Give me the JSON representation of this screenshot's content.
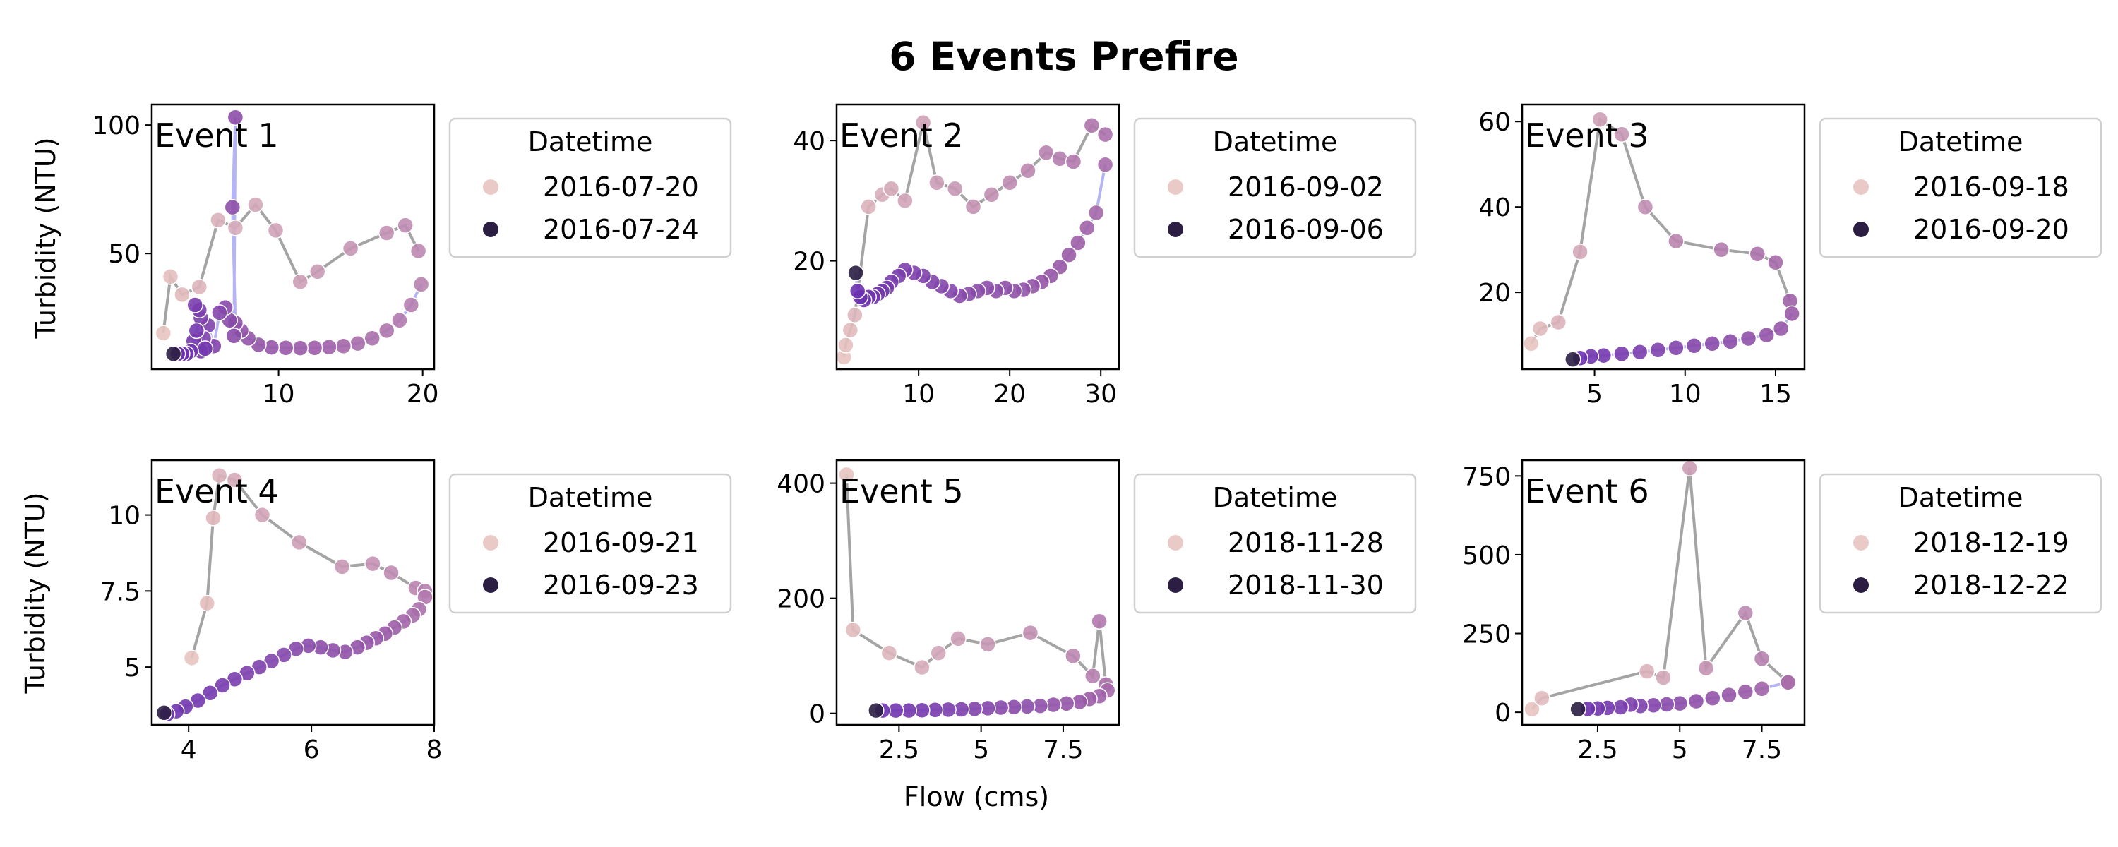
{
  "figure": {
    "title": "6 Events Prefire",
    "xlabel": "Flow (cms)",
    "ylabel": "Turbidity (NTU)"
  },
  "colors": {
    "start": "#e8c4c0",
    "mid": "#9b5ba6",
    "end": "#6a2fb0",
    "final": "#2b1e42",
    "rising": "#9a9a9a",
    "falling": "#8c8cf2"
  },
  "chart_data": [
    {
      "type": "scatter",
      "label": "Event 1",
      "legend": {
        "title": "Datetime",
        "start": "2016-07-20",
        "end": "2016-07-24"
      },
      "xlim": [
        1.2,
        20.8
      ],
      "ylim": [
        5,
        108
      ],
      "xticks": [
        10,
        20
      ],
      "yticks": [
        50,
        100
      ],
      "rising": [
        [
          2,
          19
        ],
        [
          2.5,
          41
        ],
        [
          3.3,
          34
        ],
        [
          4.5,
          37
        ],
        [
          5.8,
          63
        ],
        [
          7,
          60
        ],
        [
          8.4,
          69
        ],
        [
          9.8,
          59
        ],
        [
          11.5,
          39
        ],
        [
          12.7,
          43
        ],
        [
          15,
          52
        ],
        [
          17.5,
          58
        ],
        [
          18.8,
          61
        ],
        [
          19.7,
          51
        ]
      ],
      "falling": [
        [
          19.9,
          38
        ],
        [
          19.2,
          30
        ],
        [
          18.4,
          24
        ],
        [
          17.5,
          20
        ],
        [
          16.5,
          17
        ],
        [
          15.5,
          15
        ],
        [
          14.5,
          14
        ],
        [
          13.5,
          13.6
        ],
        [
          12.5,
          13.3
        ],
        [
          11.5,
          13.2
        ],
        [
          10.5,
          13.3
        ],
        [
          9.5,
          13.5
        ],
        [
          8.6,
          14.5
        ],
        [
          7.9,
          17
        ],
        [
          7.4,
          20
        ],
        [
          7,
          23
        ],
        [
          6.8,
          68
        ],
        [
          7,
          103
        ],
        [
          6.9,
          18
        ],
        [
          6.6,
          24
        ],
        [
          6.3,
          29
        ],
        [
          5.9,
          27
        ],
        [
          5.5,
          14
        ],
        [
          5.1,
          22
        ],
        [
          4.8,
          17
        ],
        [
          4.6,
          25
        ],
        [
          4.5,
          28
        ],
        [
          4.2,
          30
        ],
        [
          4.6,
          12
        ],
        [
          4.1,
          16
        ],
        [
          4.3,
          20
        ],
        [
          4.9,
          13
        ],
        [
          3.9,
          12
        ],
        [
          3.6,
          11
        ],
        [
          3.3,
          11
        ],
        [
          3.0,
          11
        ],
        [
          2.7,
          11
        ]
      ]
    },
    {
      "type": "scatter",
      "label": "Event 2",
      "legend": {
        "title": "Datetime",
        "start": "2016-09-02",
        "end": "2016-09-06"
      },
      "xlim": [
        1,
        32
      ],
      "ylim": [
        2,
        46
      ],
      "xticks": [
        10,
        20,
        30
      ],
      "yticks": [
        20,
        40
      ],
      "rising": [
        [
          1.8,
          4
        ],
        [
          2,
          6
        ],
        [
          2.5,
          8.5
        ],
        [
          3,
          11
        ],
        [
          4.5,
          29
        ],
        [
          6,
          31
        ],
        [
          7,
          32
        ],
        [
          8.5,
          30
        ],
        [
          10.5,
          43
        ],
        [
          12,
          33
        ],
        [
          14,
          32
        ],
        [
          16,
          29
        ],
        [
          18,
          31
        ],
        [
          20,
          33
        ],
        [
          22,
          35
        ],
        [
          24,
          38
        ],
        [
          25.5,
          37
        ],
        [
          27,
          36.5
        ],
        [
          29,
          42.5
        ],
        [
          30.5,
          41
        ]
      ],
      "falling": [
        [
          30.5,
          36
        ],
        [
          29.5,
          28
        ],
        [
          28.5,
          25.5
        ],
        [
          27.5,
          23
        ],
        [
          26.5,
          21
        ],
        [
          25.5,
          19
        ],
        [
          24.5,
          17.5
        ],
        [
          23.5,
          16.5
        ],
        [
          22.5,
          15.8
        ],
        [
          21.5,
          15.2
        ],
        [
          20.5,
          15
        ],
        [
          19.5,
          15.5
        ],
        [
          18.5,
          15
        ],
        [
          17.5,
          15.5
        ],
        [
          16.5,
          15
        ],
        [
          15.5,
          14.5
        ],
        [
          14.5,
          14.2
        ],
        [
          13.5,
          15
        ],
        [
          12.5,
          15.8
        ],
        [
          11.5,
          16.5
        ],
        [
          10.5,
          17.5
        ],
        [
          9.5,
          18
        ],
        [
          8.5,
          18.5
        ],
        [
          7.8,
          17.5
        ],
        [
          7,
          16.5
        ],
        [
          6.5,
          15.5
        ],
        [
          6,
          15
        ],
        [
          5.5,
          14.5
        ],
        [
          5,
          14
        ],
        [
          4.5,
          14
        ],
        [
          4,
          13.5
        ],
        [
          3.6,
          14
        ],
        [
          3.3,
          15
        ],
        [
          3.1,
          18
        ]
      ]
    },
    {
      "type": "scatter",
      "label": "Event 3",
      "legend": {
        "title": "Datetime",
        "start": "2016-09-18",
        "end": "2016-09-20"
      },
      "xlim": [
        1,
        16.6
      ],
      "ylim": [
        2,
        64
      ],
      "xticks": [
        5,
        10,
        15
      ],
      "yticks": [
        20,
        40,
        60
      ],
      "rising": [
        [
          1.5,
          8
        ],
        [
          2,
          11.5
        ],
        [
          3,
          13
        ],
        [
          4.2,
          29.5
        ],
        [
          5.3,
          60.5
        ],
        [
          6.5,
          57
        ],
        [
          7.8,
          40
        ],
        [
          9.5,
          32
        ],
        [
          12,
          30
        ],
        [
          14,
          29
        ],
        [
          15,
          27
        ],
        [
          15.8,
          18
        ]
      ],
      "falling": [
        [
          15.9,
          15
        ],
        [
          15.3,
          11.5
        ],
        [
          14.5,
          10
        ],
        [
          13.5,
          9.2
        ],
        [
          12.5,
          8.5
        ],
        [
          11.5,
          8
        ],
        [
          10.5,
          7.5
        ],
        [
          9.5,
          7
        ],
        [
          8.5,
          6.5
        ],
        [
          7.5,
          6
        ],
        [
          6.5,
          5.6
        ],
        [
          5.5,
          5.2
        ],
        [
          4.8,
          5
        ],
        [
          4.2,
          4.6
        ],
        [
          3.8,
          4.3
        ]
      ]
    },
    {
      "type": "scatter",
      "label": "Event 4",
      "legend": {
        "title": "Datetime",
        "start": "2016-09-21",
        "end": "2016-09-23"
      },
      "xlim": [
        3.4,
        8.0
      ],
      "ylim": [
        3.1,
        11.8
      ],
      "xticks": [
        4,
        6,
        8
      ],
      "yticks": [
        5.0,
        7.5,
        10.0
      ],
      "rising": [
        [
          4.05,
          5.3
        ],
        [
          4.3,
          7.1
        ],
        [
          4.4,
          9.9
        ],
        [
          4.5,
          11.3
        ],
        [
          4.75,
          11.15
        ],
        [
          5.2,
          10
        ],
        [
          5.8,
          9.1
        ],
        [
          6.5,
          8.3
        ],
        [
          7,
          8.4
        ],
        [
          7.3,
          8.1
        ],
        [
          7.7,
          7.6
        ],
        [
          7.85,
          7.5
        ]
      ],
      "falling": [
        [
          7.85,
          7.3
        ],
        [
          7.75,
          6.9
        ],
        [
          7.65,
          6.7
        ],
        [
          7.5,
          6.5
        ],
        [
          7.35,
          6.3
        ],
        [
          7.2,
          6.1
        ],
        [
          7.05,
          5.95
        ],
        [
          6.9,
          5.8
        ],
        [
          6.75,
          5.65
        ],
        [
          6.55,
          5.5
        ],
        [
          6.35,
          5.55
        ],
        [
          6.15,
          5.65
        ],
        [
          5.95,
          5.7
        ],
        [
          5.75,
          5.6
        ],
        [
          5.55,
          5.4
        ],
        [
          5.35,
          5.2
        ],
        [
          5.15,
          5.0
        ],
        [
          4.95,
          4.8
        ],
        [
          4.75,
          4.6
        ],
        [
          4.55,
          4.4
        ],
        [
          4.35,
          4.15
        ],
        [
          4.15,
          3.9
        ],
        [
          3.95,
          3.7
        ],
        [
          3.8,
          3.55
        ],
        [
          3.65,
          3.45
        ],
        [
          3.6,
          3.5
        ]
      ]
    },
    {
      "type": "scatter",
      "label": "Event 5",
      "legend": {
        "title": "Datetime",
        "start": "2018-11-28",
        "end": "2018-11-30"
      },
      "xlim": [
        0.6,
        9.2
      ],
      "ylim": [
        -20,
        440
      ],
      "xticks": [
        2.5,
        5.0,
        7.5
      ],
      "yticks": [
        0,
        200,
        400
      ],
      "rising": [
        [
          0.9,
          415
        ],
        [
          1.1,
          145
        ],
        [
          2.2,
          105
        ],
        [
          3.2,
          80
        ],
        [
          3.7,
          105
        ],
        [
          4.3,
          130
        ],
        [
          5.2,
          120
        ],
        [
          6.5,
          140
        ],
        [
          7.8,
          100
        ],
        [
          8.4,
          65
        ],
        [
          8.6,
          160
        ],
        [
          8.8,
          50
        ]
      ],
      "falling": [
        [
          8.85,
          40
        ],
        [
          8.6,
          30
        ],
        [
          8.3,
          25
        ],
        [
          8,
          20
        ],
        [
          7.6,
          17
        ],
        [
          7.2,
          15
        ],
        [
          6.8,
          13
        ],
        [
          6.4,
          12
        ],
        [
          6,
          11
        ],
        [
          5.6,
          10
        ],
        [
          5.2,
          9
        ],
        [
          4.8,
          8
        ],
        [
          4.4,
          7
        ],
        [
          4,
          6.5
        ],
        [
          3.6,
          6
        ],
        [
          3.2,
          5.5
        ],
        [
          2.8,
          5
        ],
        [
          2.4,
          5
        ],
        [
          2,
          5
        ],
        [
          1.8,
          5
        ]
      ]
    },
    {
      "type": "scatter",
      "label": "Event 6",
      "legend": {
        "title": "Datetime",
        "start": "2018-12-19",
        "end": "2018-12-22"
      },
      "xlim": [
        0.2,
        8.8
      ],
      "ylim": [
        -40,
        800
      ],
      "xticks": [
        2.5,
        5.0,
        7.5
      ],
      "yticks": [
        0,
        250,
        500,
        750
      ],
      "rising": [
        [
          0.5,
          10
        ],
        [
          0.8,
          45
        ],
        [
          4,
          130
        ],
        [
          4.5,
          110
        ],
        [
          5.3,
          775
        ],
        [
          5.8,
          140
        ],
        [
          7,
          315
        ],
        [
          7.5,
          170
        ],
        [
          8.3,
          95
        ]
      ],
      "falling": [
        [
          8.3,
          95
        ],
        [
          7.5,
          75
        ],
        [
          7,
          65
        ],
        [
          6.5,
          55
        ],
        [
          6,
          45
        ],
        [
          5.5,
          35
        ],
        [
          5,
          28
        ],
        [
          4.6,
          25
        ],
        [
          4.2,
          22
        ],
        [
          3.8,
          20
        ],
        [
          3.5,
          24
        ],
        [
          3.2,
          16
        ],
        [
          2.8,
          14
        ],
        [
          2.5,
          12
        ],
        [
          2.2,
          11
        ],
        [
          1.9,
          10
        ]
      ]
    }
  ]
}
